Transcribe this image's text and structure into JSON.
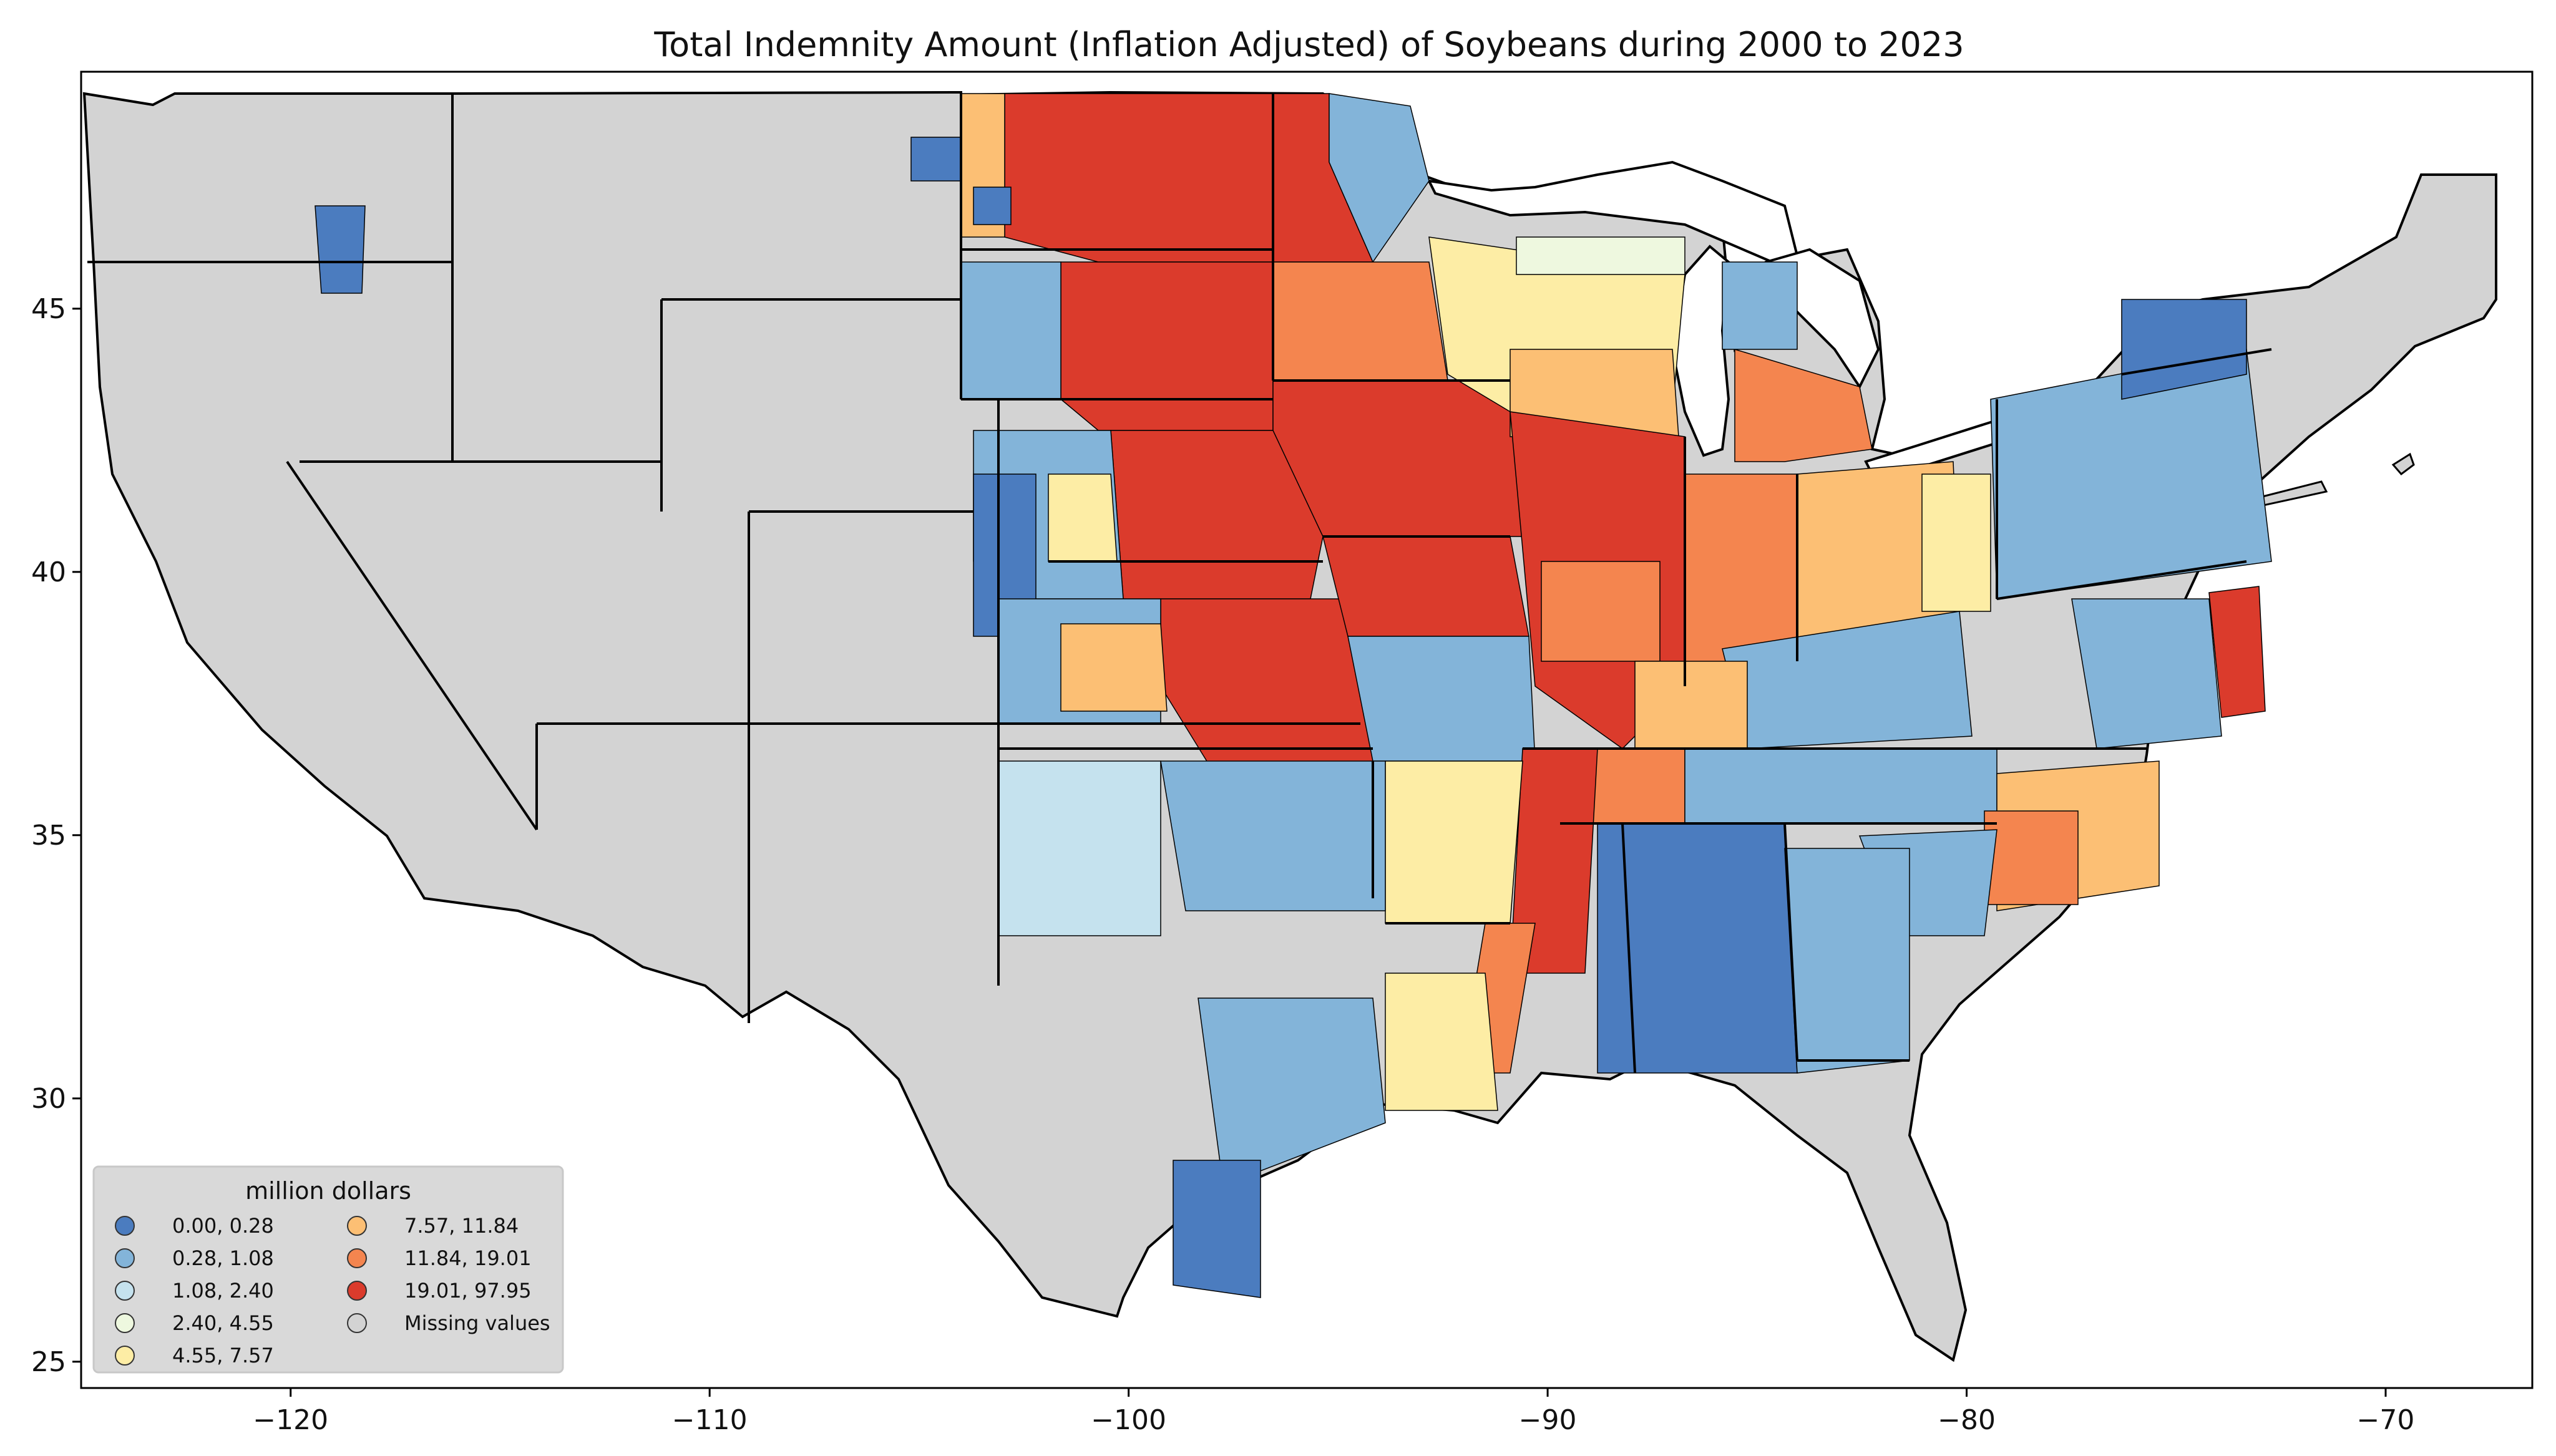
{
  "title": "Total Indemnity Amount  (Inflation Adjusted) of Soybeans during 2000 to 2023",
  "map": {
    "xlim": [
      -125,
      -66.5
    ],
    "ylim": [
      24.5,
      49.5
    ],
    "x_ticks": [
      -120,
      -110,
      -100,
      -90,
      -80,
      -70
    ],
    "y_ticks": [
      25,
      30,
      35,
      40,
      45
    ],
    "x_tick_labels": [
      "−120",
      "−110",
      "−100",
      "−90",
      "−80",
      "−70"
    ],
    "y_tick_labels": [
      "25",
      "30",
      "35",
      "40",
      "45"
    ],
    "land_color": "#d3d3d3",
    "border_color": "#000000"
  },
  "legend": {
    "title": "million dollars",
    "placement": "lower-left",
    "items": [
      {
        "label": "0.00,  0.28",
        "color": "#4b7cbf"
      },
      {
        "label": "0.28,  1.08",
        "color": "#83b4d9"
      },
      {
        "label": "1.08,  2.40",
        "color": "#c5e2ee"
      },
      {
        "label": "2.40,  4.55",
        "color": "#eef8df"
      },
      {
        "label": "4.55,  7.57",
        "color": "#fdeda5"
      },
      {
        "label": " 7.57, 11.84",
        "color": "#fcbf74"
      },
      {
        "label": "11.84, 19.01",
        "color": "#f4854f"
      },
      {
        "label": "19.01, 97.95",
        "color": "#db3b2c"
      },
      {
        "label": "Missing values",
        "color": "#d3d3d3"
      }
    ]
  }
}
